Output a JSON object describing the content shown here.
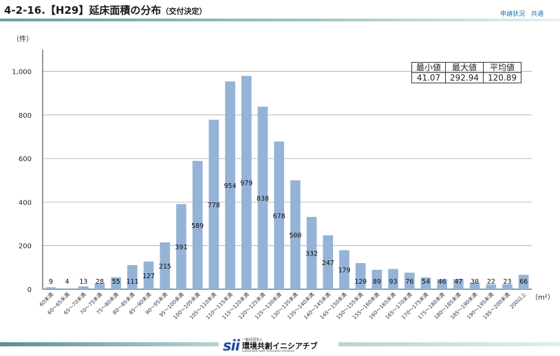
{
  "header": {
    "title_main": "4-2-16.【H29】延床面積の分布",
    "title_sub": "（交付決定）",
    "right_label": "申請状況　共通",
    "rule_color": "#7aa9aa"
  },
  "units": {
    "y": "（件）",
    "x": "（m²）"
  },
  "stats": {
    "headers": [
      "最小値",
      "最大値",
      "平均値"
    ],
    "values": [
      "41.07",
      "292.94",
      "120.89"
    ]
  },
  "footer": {
    "logo_mark": "sii",
    "logo_sub": "一般社団法人",
    "logo_main": "環境共創イニシアチブ",
    "logo_en": "Sustainable open Innovation Initiative"
  },
  "chart_data": {
    "type": "bar",
    "title": "",
    "xlabel": "",
    "ylabel": "",
    "ylim": [
      0,
      1100
    ],
    "yticks": [
      0,
      200,
      400,
      600,
      800,
      1000
    ],
    "ytick_labels": [
      "0",
      "200",
      "400",
      "600",
      "800",
      "1,000"
    ],
    "grid": true,
    "bar_color": "#95b3d7",
    "categories": [
      "60未満",
      "60～65未満",
      "65～70未満",
      "70～75未満",
      "75～80未満",
      "80～85未満",
      "85～90未満",
      "90～95未満",
      "95～100未満",
      "100～105未満",
      "105～110未満",
      "110～115未満",
      "115～120未満",
      "120～125未満",
      "125～130未満",
      "130～135未満",
      "135～140未満",
      "140～145未満",
      "145～150未満",
      "150～155未満",
      "155～160未満",
      "160～165未満",
      "165～170未満",
      "170～175未満",
      "175～180未満",
      "180～185未満",
      "185～190未満",
      "190～195未満",
      "195～200未満",
      "200以上"
    ],
    "values": [
      9,
      4,
      13,
      28,
      55,
      111,
      127,
      215,
      391,
      589,
      778,
      954,
      979,
      838,
      678,
      500,
      332,
      247,
      179,
      120,
      89,
      93,
      76,
      54,
      46,
      47,
      30,
      22,
      23,
      66
    ]
  }
}
